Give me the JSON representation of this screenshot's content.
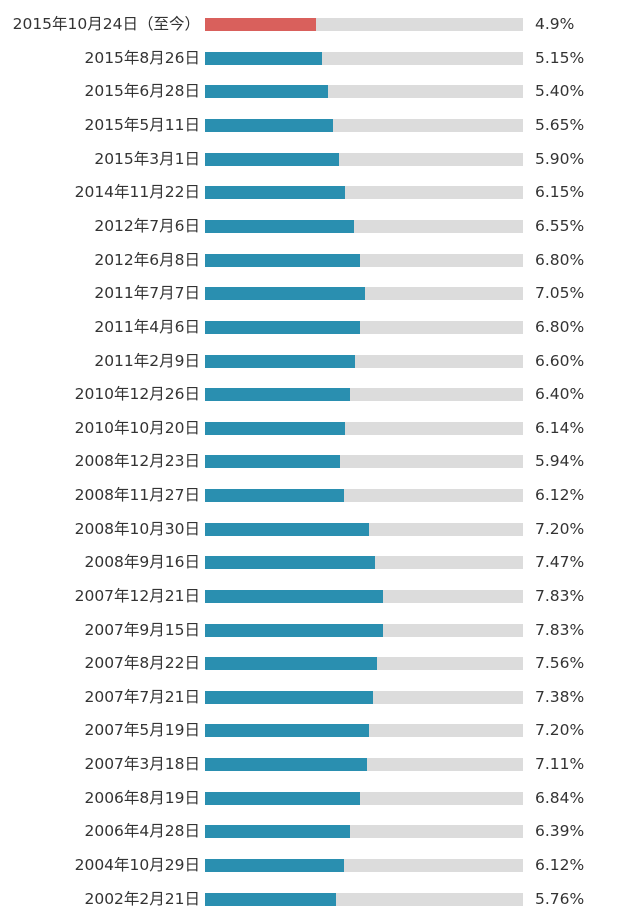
{
  "colors": {
    "current": "#d9605c",
    "history": "#2a8fb0",
    "track": "#dcdcdc"
  },
  "chart_data": {
    "type": "bar",
    "orientation": "horizontal",
    "title": "",
    "xlabel": "",
    "ylabel": "",
    "xlim": [
      0,
      14
    ],
    "categories": [
      "2015年10月24日（至今）",
      "2015年8月26日",
      "2015年6月28日",
      "2015年5月11日",
      "2015年3月1日",
      "2014年11月22日",
      "2012年7月6日",
      "2012年6月8日",
      "2011年7月7日",
      "2011年4月6日",
      "2011年2月9日",
      "2010年12月26日",
      "2010年10月20日",
      "2008年12月23日",
      "2008年11月27日",
      "2008年10月30日",
      "2008年9月16日",
      "2007年12月21日",
      "2007年9月15日",
      "2007年8月22日",
      "2007年7月21日",
      "2007年5月19日",
      "2007年3月18日",
      "2006年8月19日",
      "2006年4月28日",
      "2004年10月29日",
      "2002年2月21日"
    ],
    "values": [
      4.9,
      5.15,
      5.4,
      5.65,
      5.9,
      6.15,
      6.55,
      6.8,
      7.05,
      6.8,
      6.6,
      6.4,
      6.14,
      5.94,
      6.12,
      7.2,
      7.47,
      7.83,
      7.83,
      7.56,
      7.38,
      7.2,
      7.11,
      6.84,
      6.39,
      6.12,
      5.76
    ],
    "value_labels": [
      "4.9%",
      "5.15%",
      "5.40%",
      "5.65%",
      "5.90%",
      "6.15%",
      "6.55%",
      "6.80%",
      "7.05%",
      "6.80%",
      "6.60%",
      "6.40%",
      "6.14%",
      "5.94%",
      "6.12%",
      "7.20%",
      "7.47%",
      "7.83%",
      "7.83%",
      "7.56%",
      "7.38%",
      "7.20%",
      "7.11%",
      "6.84%",
      "6.39%",
      "6.12%",
      "5.76%"
    ],
    "highlight_index": 0
  }
}
